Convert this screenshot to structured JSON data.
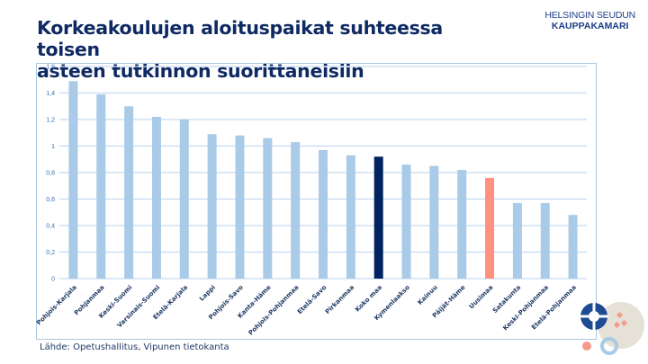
{
  "header": {
    "title_line1": "Korkeakoulujen aloituspaikat suhteessa toisen",
    "title_line2": "asteen tutkinnon suorittaneisiin",
    "brand_line1": "HELSINGIN SEUDUN",
    "brand_line2": "KAUPPAKAMARI"
  },
  "footer": {
    "source": "Lähde: Opetushallitus, Vipunen tietokanta"
  },
  "colors": {
    "default_bar": "#a9cbe7",
    "highlight_total": "#00235f",
    "highlight_uusimaa": "#ff9180",
    "grid": "#c5d9f1",
    "axis_text": "#3a6fb5",
    "label_text": "#1f3a66"
  },
  "chart_data": {
    "type": "bar",
    "title": "Korkeakoulujen aloituspaikat suhteessa toisen asteen tutkinnon suorittaneisiin",
    "xlabel": "",
    "ylabel": "",
    "ylim": [
      0,
      1.6
    ],
    "yticks": [
      0,
      0.2,
      0.4,
      0.6,
      0.8,
      1,
      1.2,
      1.4,
      1.6
    ],
    "ytick_labels": [
      "0",
      "0,2",
      "0,4",
      "0,6",
      "0,8",
      "1",
      "1,2",
      "1,4",
      "1,6"
    ],
    "grid": true,
    "legend": "none",
    "categories": [
      "Pohjois-Karjala",
      "Pohjanmaa",
      "Keski-Suomi",
      "Varsinais-Suomi",
      "Etelä-Karjala",
      "Lappi",
      "Pohjois-Savo",
      "Kanta-Häme",
      "Pohjois-Pohjanmaa",
      "Etelä-Savo",
      "Pirkanmaa",
      "Koko maa",
      "Kymenlaakso",
      "Kainuu",
      "Päijät-Häme",
      "Uusimaa",
      "Satakunta",
      "Keski-Pohjanmaa",
      "Etelä-Pohjanmaa"
    ],
    "values": [
      1.49,
      1.39,
      1.3,
      1.22,
      1.2,
      1.09,
      1.08,
      1.06,
      1.03,
      0.97,
      0.93,
      0.92,
      0.86,
      0.85,
      0.82,
      0.76,
      0.57,
      0.57,
      0.48
    ],
    "bar_color_keys": [
      "default_bar",
      "default_bar",
      "default_bar",
      "default_bar",
      "default_bar",
      "default_bar",
      "default_bar",
      "default_bar",
      "default_bar",
      "default_bar",
      "default_bar",
      "highlight_total",
      "default_bar",
      "default_bar",
      "default_bar",
      "highlight_uusimaa",
      "default_bar",
      "default_bar",
      "default_bar"
    ]
  }
}
